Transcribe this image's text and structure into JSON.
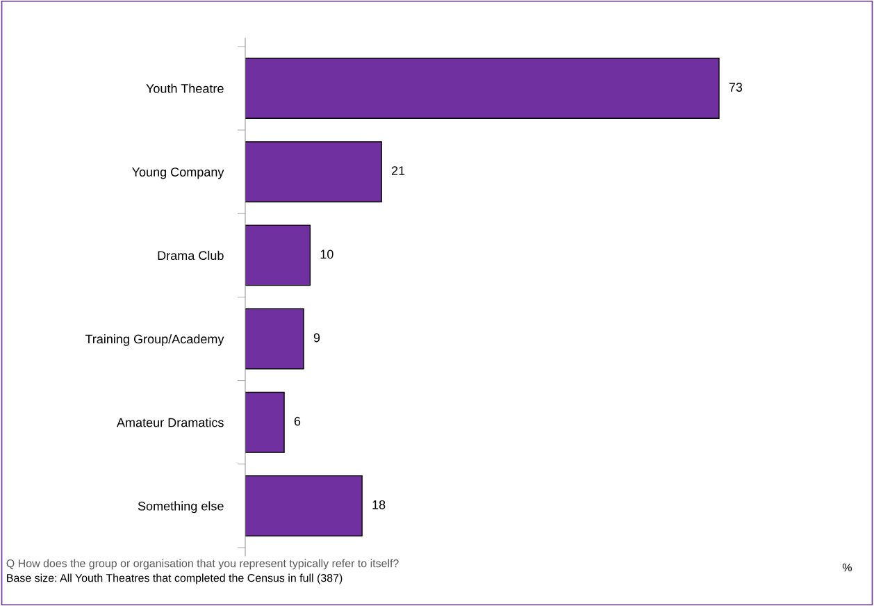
{
  "chart_data": {
    "type": "bar",
    "orientation": "horizontal",
    "categories": [
      "Youth Theatre",
      "Young Company",
      "Drama Club",
      "Training Group/Academy",
      "Amateur Dramatics",
      "Something else"
    ],
    "values": [
      73,
      21,
      10,
      9,
      6,
      18
    ],
    "color": "#7030a0",
    "data_labels": true,
    "tick_labels": "y",
    "grid": false,
    "legend": false,
    "annotations": [
      "Q How does the group or organisation that you represent typically refer to itself?",
      "Base size: All Youth Theatres that completed the Census in full (387)",
      "%"
    ]
  }
}
